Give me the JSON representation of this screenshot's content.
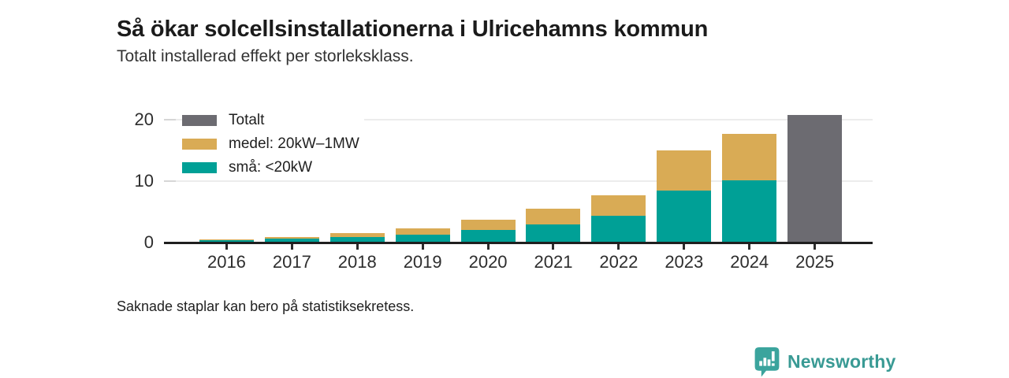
{
  "header": {
    "title": "Så ökar solcellsinstallationerna i Ulricehamns kommun",
    "subtitle": "Totalt installerad effekt per storleksklass."
  },
  "footer": {
    "note": "Saknade staplar kan bero på statistiksekretess."
  },
  "logo": {
    "text": "Newsworthy",
    "icon": "newsworthy-speech-bubble-bar-chart-icon",
    "color": "#399a94"
  },
  "colors": {
    "total": "#6c6b71",
    "medium": "#d9ab55",
    "small": "#00a096",
    "grid": "#ececec",
    "axis": "#1f1f1f"
  },
  "chart_data": {
    "type": "bar",
    "stacked": true,
    "title": "Så ökar solcellsinstallationerna i Ulricehamns kommun",
    "subtitle": "Totalt installerad effekt per storleksklass.",
    "categories": [
      "2016",
      "2017",
      "2018",
      "2019",
      "2020",
      "2021",
      "2022",
      "2023",
      "2024",
      "2025"
    ],
    "series": [
      {
        "name": "Totalt",
        "color": "#6c6b71",
        "values": [
          null,
          null,
          null,
          null,
          null,
          null,
          null,
          null,
          null,
          20.7
        ]
      },
      {
        "name": "medel: 20kW–1MW",
        "color": "#d9ab55",
        "values": [
          0.1,
          0.3,
          0.75,
          1.0,
          1.7,
          2.5,
          3.3,
          6.4,
          7.6,
          null
        ]
      },
      {
        "name": "små: <20kW",
        "color": "#00a096",
        "values": [
          0.35,
          0.6,
          0.85,
          1.3,
          2.0,
          3.0,
          4.4,
          8.5,
          10.1,
          null
        ]
      }
    ],
    "xlabel": "",
    "ylabel": "",
    "ylim": [
      0,
      21.1
    ],
    "yticks": [
      0,
      10,
      20
    ],
    "grid": true,
    "legend_position": "top-left",
    "note": "Saknade staplar kan bero på statistiksekretess."
  }
}
